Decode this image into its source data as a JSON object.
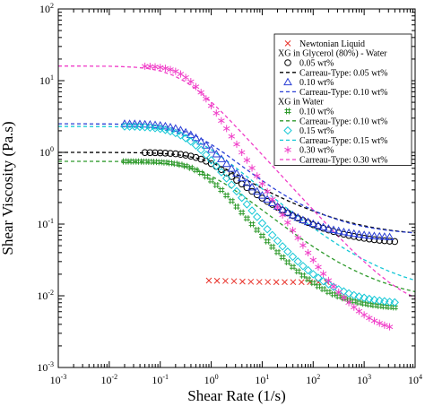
{
  "chart_data": {
    "type": "scatter",
    "title": "",
    "xlabel": "Shear Rate (1/s)",
    "ylabel": "Shear Viscosity (Pa.s)",
    "x_scale": "log",
    "y_scale": "log",
    "xlim": [
      0.001,
      10000
    ],
    "ylim": [
      0.001,
      100
    ],
    "x_ticks": [
      {
        "value": 0.001,
        "base": "10",
        "exp": "-3"
      },
      {
        "value": 0.01,
        "base": "10",
        "exp": "-2"
      },
      {
        "value": 0.1,
        "base": "10",
        "exp": "-1"
      },
      {
        "value": 1,
        "base": "10",
        "exp": "0"
      },
      {
        "value": 10,
        "base": "10",
        "exp": "1"
      },
      {
        "value": 100,
        "base": "10",
        "exp": "2"
      },
      {
        "value": 1000,
        "base": "10",
        "exp": "3"
      },
      {
        "value": 10000,
        "base": "10",
        "exp": "4"
      }
    ],
    "y_ticks": [
      {
        "value": 0.001,
        "base": "10",
        "exp": "-3"
      },
      {
        "value": 0.01,
        "base": "10",
        "exp": "-2"
      },
      {
        "value": 0.1,
        "base": "10",
        "exp": "-1"
      },
      {
        "value": 1,
        "base": "10",
        "exp": "0"
      },
      {
        "value": 10,
        "base": "10",
        "exp": "1"
      },
      {
        "value": 100,
        "base": "10",
        "exp": "2"
      }
    ],
    "grid": false,
    "legend_position": "top-right",
    "legend": [
      {
        "kind": "series",
        "ref": "newtonian"
      },
      {
        "kind": "header",
        "label": "XG in Glycerol (80%) - Water"
      },
      {
        "kind": "series",
        "ref": "gly005"
      },
      {
        "kind": "series",
        "ref": "gly005_fit"
      },
      {
        "kind": "series",
        "ref": "gly010"
      },
      {
        "kind": "series",
        "ref": "gly010_fit"
      },
      {
        "kind": "header",
        "label": "XG in Water"
      },
      {
        "kind": "series",
        "ref": "w010"
      },
      {
        "kind": "series",
        "ref": "w010_fit"
      },
      {
        "kind": "series",
        "ref": "w015"
      },
      {
        "kind": "series",
        "ref": "w015_fit"
      },
      {
        "kind": "series",
        "ref": "w030"
      },
      {
        "kind": "series",
        "ref": "w030_fit"
      }
    ],
    "series": [
      {
        "id": "newtonian",
        "name": "Newtonian Liquid",
        "kind": "scatter",
        "marker": "x",
        "color": "#e8322a",
        "x": [
          0.9,
          1.3,
          1.9,
          2.8,
          4.1,
          6,
          8.8,
          12.9,
          18.9,
          27.6,
          40.4,
          59.1,
          86.5,
          126.5,
          185
        ],
        "y": [
          0.0163,
          0.0162,
          0.0161,
          0.016,
          0.0158,
          0.0157,
          0.0156,
          0.0156,
          0.0155,
          0.0155,
          0.0155,
          0.0155,
          0.0155,
          0.0155,
          0.0155
        ]
      },
      {
        "id": "gly005",
        "name": "0.05 wt%",
        "kind": "scatter",
        "marker": "circle",
        "color": "#000000",
        "x": [
          0.05,
          0.0631,
          0.0794,
          0.1,
          0.126,
          0.158,
          0.2,
          0.251,
          0.316,
          0.398,
          0.501,
          0.631,
          0.794,
          1,
          1.26,
          1.58,
          2,
          2.51,
          3.16,
          3.98,
          5.01,
          6.31,
          7.94,
          10,
          12.6,
          15.8,
          20,
          25.1,
          31.6,
          39.8,
          50.1,
          63.1,
          79.4,
          100,
          126,
          158,
          200,
          251,
          316,
          398,
          501,
          631,
          794,
          1000,
          1260,
          1580,
          2000,
          2510,
          3160,
          3980
        ],
        "y": [
          0.994,
          0.992,
          0.989,
          0.984,
          0.977,
          0.968,
          0.955,
          0.938,
          0.915,
          0.886,
          0.849,
          0.805,
          0.754,
          0.697,
          0.637,
          0.576,
          0.516,
          0.46,
          0.408,
          0.362,
          0.322,
          0.286,
          0.256,
          0.23,
          0.207,
          0.188,
          0.171,
          0.156,
          0.143,
          0.131,
          0.121,
          0.113,
          0.105,
          0.098,
          0.0926,
          0.0873,
          0.0827,
          0.0787,
          0.0751,
          0.0721,
          0.0694,
          0.0671,
          0.0651,
          0.0634,
          0.0619,
          0.0606,
          0.0595,
          0.0586,
          0.0578,
          0.0571
        ]
      },
      {
        "id": "gly005_fit",
        "name": "Carreau-Type: 0.05 wt%",
        "kind": "line",
        "color": "#000000",
        "x": [
          0.001,
          0.00178,
          0.00316,
          0.00562,
          0.01,
          0.0178,
          0.0316,
          0.0562,
          0.1,
          0.178,
          0.316,
          0.562,
          1,
          1.78,
          3.16,
          5.62,
          10,
          17.8,
          31.6,
          56.2,
          100,
          178,
          316,
          562,
          1000,
          1780,
          3160,
          5620,
          10000
        ],
        "y": [
          1,
          1,
          0.999,
          0.998,
          0.997,
          0.994,
          0.99,
          0.982,
          0.967,
          0.94,
          0.893,
          0.82,
          0.72,
          0.605,
          0.491,
          0.393,
          0.315,
          0.256,
          0.212,
          0.178,
          0.152,
          0.132,
          0.116,
          0.104,
          0.0946,
          0.0876,
          0.0823,
          0.0784,
          0.0755
        ]
      },
      {
        "id": "gly010",
        "name": "0.10 wt%",
        "kind": "scatter",
        "marker": "triangle",
        "color": "#2a3fd6",
        "x": [
          0.02,
          0.0251,
          0.0316,
          0.0398,
          0.0501,
          0.0631,
          0.0794,
          0.1,
          0.126,
          0.158,
          0.2,
          0.251,
          0.316,
          0.398,
          0.501,
          0.631,
          0.794,
          1,
          1.26,
          1.58,
          2,
          2.51,
          3.16,
          3.98,
          5.01,
          6.31,
          7.94,
          10,
          12.6,
          15.8,
          20,
          25.1,
          31.6,
          39.8,
          50.1,
          63.1,
          79.4,
          100,
          126,
          158,
          200,
          251,
          316,
          398,
          501,
          631,
          794,
          1000,
          1260,
          1580,
          2000,
          2510,
          3160
        ],
        "y": [
          2.5,
          2.49,
          2.49,
          2.48,
          2.46,
          2.44,
          2.41,
          2.37,
          2.31,
          2.24,
          2.15,
          2.04,
          1.9,
          1.75,
          1.59,
          1.42,
          1.25,
          1.09,
          0.943,
          0.81,
          0.694,
          0.594,
          0.509,
          0.437,
          0.377,
          0.327,
          0.285,
          0.25,
          0.221,
          0.197,
          0.176,
          0.159,
          0.145,
          0.133,
          0.123,
          0.114,
          0.107,
          0.101,
          0.0953,
          0.0905,
          0.0864,
          0.0829,
          0.08,
          0.0774,
          0.0752,
          0.0733,
          0.0717,
          0.0703,
          0.0691,
          0.0681,
          0.0672,
          0.0665,
          0.0658
        ]
      },
      {
        "id": "gly010_fit",
        "name": "Carreau-Type: 0.10 wt%",
        "kind": "line",
        "color": "#2a3fd6",
        "x": [
          0.001,
          0.00178,
          0.00316,
          0.00562,
          0.01,
          0.0178,
          0.0316,
          0.0562,
          0.1,
          0.178,
          0.316,
          0.562,
          1,
          1.78,
          3.16,
          5.62,
          10,
          17.8,
          31.6,
          56.2,
          100,
          178,
          316,
          562,
          1000,
          1780,
          3160,
          5620,
          10000
        ],
        "y": [
          2.5,
          2.5,
          2.5,
          2.49,
          2.49,
          2.47,
          2.45,
          2.4,
          2.32,
          2.17,
          1.94,
          1.63,
          1.29,
          0.98,
          0.728,
          0.539,
          0.403,
          0.306,
          0.238,
          0.19,
          0.155,
          0.131,
          0.114,
          0.101,
          0.0921,
          0.0858,
          0.0811,
          0.0778,
          0.0754
        ]
      },
      {
        "id": "w010",
        "name": "0.10 wt%",
        "kind": "scatter",
        "marker": "hash",
        "color": "#2f9a2c",
        "x": [
          0.02,
          0.0251,
          0.0316,
          0.0398,
          0.0501,
          0.0631,
          0.0794,
          0.1,
          0.126,
          0.158,
          0.2,
          0.251,
          0.316,
          0.398,
          0.501,
          0.631,
          0.794,
          1,
          1.26,
          1.58,
          2,
          2.51,
          3.16,
          3.98,
          5.01,
          6.31,
          7.94,
          10,
          12.6,
          15.8,
          20,
          25.1,
          31.6,
          39.8,
          50.1,
          63.1,
          79.4,
          100,
          126,
          158,
          200,
          251,
          316,
          398,
          501,
          631,
          794,
          1000,
          1260,
          1580,
          2000,
          2510,
          3160,
          3980
        ],
        "y": [
          0.748,
          0.747,
          0.746,
          0.745,
          0.743,
          0.74,
          0.736,
          0.73,
          0.722,
          0.71,
          0.694,
          0.673,
          0.645,
          0.609,
          0.566,
          0.516,
          0.461,
          0.405,
          0.35,
          0.298,
          0.251,
          0.21,
          0.175,
          0.145,
          0.12,
          0.0997,
          0.0828,
          0.0689,
          0.0575,
          0.0482,
          0.0406,
          0.0344,
          0.0294,
          0.0253,
          0.0219,
          0.0192,
          0.017,
          0.0151,
          0.0136,
          0.0124,
          0.0113,
          0.0105,
          0.0098,
          0.00923,
          0.00876,
          0.00837,
          0.00805,
          0.00778,
          0.00756,
          0.00738,
          0.00722,
          0.0071,
          0.00699,
          0.0069
        ]
      },
      {
        "id": "w010_fit",
        "name": "Carreau-Type: 0.10 wt%",
        "kind": "line",
        "color": "#2f9a2c",
        "x": [
          0.001,
          0.00178,
          0.00316,
          0.00562,
          0.01,
          0.0178,
          0.0316,
          0.0562,
          0.1,
          0.178,
          0.316,
          0.562,
          1,
          1.78,
          3.16,
          5.62,
          10,
          17.8,
          31.6,
          56.2,
          100,
          178,
          316,
          562,
          1000,
          1780,
          3160,
          5620,
          10000
        ],
        "y": [
          0.75,
          0.75,
          0.75,
          0.749,
          0.748,
          0.746,
          0.742,
          0.734,
          0.718,
          0.688,
          0.637,
          0.562,
          0.468,
          0.371,
          0.284,
          0.212,
          0.157,
          0.116,
          0.0858,
          0.064,
          0.0484,
          0.0372,
          0.0293,
          0.0236,
          0.0195,
          0.0165,
          0.0143,
          0.0126,
          0.0114
        ]
      },
      {
        "id": "w015",
        "name": "0.15 wt%",
        "kind": "scatter",
        "marker": "diamond",
        "color": "#16c8d6",
        "x": [
          0.02,
          0.0251,
          0.0316,
          0.0398,
          0.0501,
          0.0631,
          0.0794,
          0.1,
          0.126,
          0.158,
          0.2,
          0.251,
          0.316,
          0.398,
          0.501,
          0.631,
          0.794,
          1,
          1.26,
          1.58,
          2,
          2.51,
          3.16,
          3.98,
          5.01,
          6.31,
          7.94,
          10,
          12.6,
          15.8,
          20,
          25.1,
          31.6,
          39.8,
          50.1,
          63.1,
          79.4,
          100,
          126,
          158,
          200,
          251,
          316,
          398,
          501,
          631,
          794,
          1000,
          1260,
          1580,
          2000,
          2510,
          3160,
          3980
        ],
        "y": [
          2.3,
          2.29,
          2.29,
          2.27,
          2.25,
          2.22,
          2.18,
          2.13,
          2.06,
          1.97,
          1.86,
          1.73,
          1.58,
          1.42,
          1.25,
          1.08,
          0.923,
          0.777,
          0.645,
          0.531,
          0.434,
          0.353,
          0.287,
          0.233,
          0.189,
          0.154,
          0.126,
          0.103,
          0.0848,
          0.0702,
          0.0584,
          0.0489,
          0.0413,
          0.0351,
          0.0301,
          0.026,
          0.0227,
          0.02,
          0.0178,
          0.016,
          0.0145,
          0.0133,
          0.0123,
          0.0115,
          0.0108,
          0.0102,
          0.00975,
          0.00937,
          0.00905,
          0.00878,
          0.00856,
          0.00838,
          0.00822,
          0.00809
        ]
      },
      {
        "id": "w015_fit",
        "name": "Carreau-Type: 0.15 wt%",
        "kind": "line",
        "color": "#16c8d6",
        "x": [
          0.001,
          0.00178,
          0.00316,
          0.00562,
          0.01,
          0.0178,
          0.0316,
          0.0562,
          0.1,
          0.178,
          0.316,
          0.562,
          1,
          1.78,
          3.16,
          5.62,
          10,
          17.8,
          31.6,
          56.2,
          100,
          178,
          316,
          562,
          1000,
          1780,
          3160,
          5620,
          10000
        ],
        "y": [
          2.3,
          2.3,
          2.3,
          2.29,
          2.29,
          2.27,
          2.24,
          2.19,
          2.09,
          1.93,
          1.69,
          1.4,
          1.09,
          0.818,
          0.597,
          0.431,
          0.311,
          0.225,
          0.163,
          0.12,
          0.0887,
          0.0666,
          0.0509,
          0.0398,
          0.0318,
          0.026,
          0.0218,
          0.0187,
          0.0164
        ]
      },
      {
        "id": "w030",
        "name": "0.30 wt%",
        "kind": "scatter",
        "marker": "asterisk",
        "color": "#f03ec8",
        "x": [
          0.0501,
          0.0631,
          0.0794,
          0.1,
          0.126,
          0.158,
          0.2,
          0.251,
          0.316,
          0.398,
          0.501,
          0.631,
          0.794,
          1,
          1.26,
          1.58,
          2,
          2.51,
          3.16,
          3.98,
          5.01,
          6.31,
          7.94,
          10,
          12.6,
          15.8,
          20,
          25.1,
          31.6,
          39.8,
          50.1,
          63.1,
          79.4,
          100,
          126,
          158,
          200,
          251,
          316,
          398,
          501,
          631,
          794,
          1000,
          1260,
          1580,
          2000,
          2510,
          3160
        ],
        "y": [
          15.9,
          15.8,
          15.6,
          15.3,
          14.9,
          14.3,
          13.5,
          12.4,
          11.1,
          9.7,
          8.26,
          6.86,
          5.58,
          4.46,
          3.53,
          2.76,
          2.15,
          1.67,
          1.3,
          1.0,
          0.779,
          0.605,
          0.47,
          0.365,
          0.284,
          0.221,
          0.172,
          0.134,
          0.105,
          0.0819,
          0.0642,
          0.0505,
          0.0398,
          0.0316,
          0.0252,
          0.0203,
          0.0164,
          0.0135,
          0.0112,
          0.00942,
          0.00803,
          0.00694,
          0.00609,
          0.00542,
          0.00489,
          0.00448,
          0.00415,
          0.00389,
          0.00369
        ]
      },
      {
        "id": "w030_fit",
        "name": "Carreau-Type: 0.30 wt%",
        "kind": "line",
        "color": "#f03ec8",
        "x": [
          0.001,
          0.00178,
          0.00316,
          0.00562,
          0.01,
          0.0178,
          0.0316,
          0.0562,
          0.1,
          0.178,
          0.316,
          0.562,
          1,
          1.78,
          3.16,
          5.62,
          10,
          17.8,
          31.6,
          56.2,
          100,
          178,
          316,
          562,
          1000,
          1780,
          3160,
          5620,
          10000
        ],
        "y": [
          16,
          16,
          16,
          15.9,
          15.9,
          15.7,
          15.4,
          14.8,
          13.7,
          11.9,
          9.62,
          7.2,
          5.06,
          3.4,
          2.23,
          1.44,
          0.927,
          0.595,
          0.382,
          0.245,
          0.158,
          0.102,
          0.0666,
          0.0441,
          0.0299,
          0.0209,
          0.0152,
          0.0116,
          0.00937
        ]
      }
    ]
  }
}
